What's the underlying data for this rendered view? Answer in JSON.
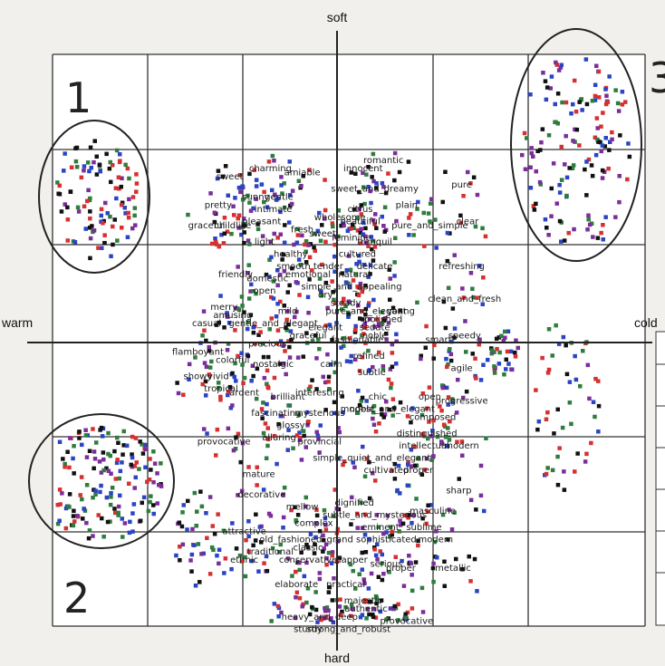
{
  "chart_data": {
    "type": "scatter",
    "axes": {
      "top": "soft",
      "bottom": "hard",
      "left": "warm",
      "right": "cold"
    },
    "grid": "on",
    "xlim": [
      -5,
      5
    ],
    "ylim": [
      -5,
      5
    ],
    "region_numbers": [
      "1",
      "2",
      "3"
    ],
    "point_colors": [
      "#d63030",
      "#2a44c4",
      "#2e7d3c",
      "#7b2d9a",
      "#111111"
    ],
    "words": [
      {
        "text": "sweet",
        "x": -3.7,
        "y": 4.0
      },
      {
        "text": "charming",
        "x": -2.3,
        "y": 4.2
      },
      {
        "text": "amiable",
        "x": -1.2,
        "y": 4.1
      },
      {
        "text": "innocent",
        "x": 0.9,
        "y": 4.2
      },
      {
        "text": "romantic",
        "x": 1.6,
        "y": 4.4
      },
      {
        "text": "sweet_and_dreamy",
        "x": 1.3,
        "y": 3.7
      },
      {
        "text": "sunny",
        "x": -2.8,
        "y": 3.5
      },
      {
        "text": "gentle",
        "x": -2.0,
        "y": 3.5
      },
      {
        "text": "pretty",
        "x": -4.1,
        "y": 3.3
      },
      {
        "text": "intimate",
        "x": -2.2,
        "y": 3.2
      },
      {
        "text": "citrus",
        "x": 0.8,
        "y": 3.2
      },
      {
        "text": "plain",
        "x": 2.4,
        "y": 3.3
      },
      {
        "text": "pure",
        "x": 4.3,
        "y": 3.8
      },
      {
        "text": "graceful",
        "x": -4.5,
        "y": 2.8
      },
      {
        "text": "childlike",
        "x": -3.6,
        "y": 2.8
      },
      {
        "text": "pleasant",
        "x": -2.6,
        "y": 2.9
      },
      {
        "text": "fresh",
        "x": -1.2,
        "y": 2.7
      },
      {
        "text": "wholesome",
        "x": 0.1,
        "y": 3.0
      },
      {
        "text": "beautiful",
        "x": 0.8,
        "y": 2.9
      },
      {
        "text": "pure_and_simple",
        "x": 3.2,
        "y": 2.8
      },
      {
        "text": "clear",
        "x": 4.5,
        "y": 2.9
      },
      {
        "text": "light",
        "x": -2.5,
        "y": 2.4
      },
      {
        "text": "sweet",
        "x": -0.5,
        "y": 2.6
      },
      {
        "text": "feminine",
        "x": 0.5,
        "y": 2.5
      },
      {
        "text": "tranquil",
        "x": 1.3,
        "y": 2.4
      },
      {
        "text": "cultured",
        "x": 0.7,
        "y": 2.1
      },
      {
        "text": "delicate",
        "x": 1.3,
        "y": 1.8
      },
      {
        "text": "healthy",
        "x": -1.6,
        "y": 2.1
      },
      {
        "text": "smooth",
        "x": -1.5,
        "y": 1.8
      },
      {
        "text": "tender",
        "x": -0.3,
        "y": 1.8
      },
      {
        "text": "friendly",
        "x": -3.5,
        "y": 1.6
      },
      {
        "text": "domestic",
        "x": -2.4,
        "y": 1.5
      },
      {
        "text": "emotional",
        "x": -1.0,
        "y": 1.6
      },
      {
        "text": "natural",
        "x": 0.6,
        "y": 1.6
      },
      {
        "text": "refreshing",
        "x": 4.3,
        "y": 1.8
      },
      {
        "text": "simple_and_appealing",
        "x": 0.5,
        "y": 1.3
      },
      {
        "text": "open",
        "x": -2.5,
        "y": 1.2
      },
      {
        "text": "dry",
        "x": -0.4,
        "y": 1.1
      },
      {
        "text": "steady",
        "x": 0.3,
        "y": 0.9
      },
      {
        "text": "clean_and_fresh",
        "x": 4.4,
        "y": 1.0
      },
      {
        "text": "merry",
        "x": -3.9,
        "y": 0.8
      },
      {
        "text": "amusing",
        "x": -3.6,
        "y": 0.6
      },
      {
        "text": "mild",
        "x": -1.7,
        "y": 0.7
      },
      {
        "text": "pure_and_elegant",
        "x": 1.0,
        "y": 0.7
      },
      {
        "text": "young",
        "x": 2.2,
        "y": 0.7
      },
      {
        "text": "casual",
        "x": -4.5,
        "y": 0.4
      },
      {
        "text": "gentle_and_elegant",
        "x": -2.2,
        "y": 0.4
      },
      {
        "text": "elegant",
        "x": -0.4,
        "y": 0.3
      },
      {
        "text": "polished",
        "x": 1.6,
        "y": 0.5
      },
      {
        "text": "sedate",
        "x": 1.3,
        "y": 0.3
      },
      {
        "text": "noble",
        "x": 1.3,
        "y": 0.1
      },
      {
        "text": "graceful",
        "x": -1.0,
        "y": 0.1
      },
      {
        "text": "speedy",
        "x": 4.4,
        "y": 0.1
      },
      {
        "text": "precious",
        "x": -2.4,
        "y": -0.1
      },
      {
        "text": "fashionable",
        "x": 0.7,
        "y": 0.0
      },
      {
        "text": "smart",
        "x": 3.5,
        "y": 0.0
      },
      {
        "text": "flamboyant",
        "x": -4.8,
        "y": -0.3
      },
      {
        "text": "colorful",
        "x": -3.6,
        "y": -0.5
      },
      {
        "text": "nostalgic",
        "x": -2.2,
        "y": -0.6
      },
      {
        "text": "calm",
        "x": -0.2,
        "y": -0.6
      },
      {
        "text": "refined",
        "x": 1.1,
        "y": -0.4
      },
      {
        "text": "subtle",
        "x": 1.2,
        "y": -0.8
      },
      {
        "text": "agile",
        "x": 4.3,
        "y": -0.7
      },
      {
        "text": "showy",
        "x": -4.8,
        "y": -0.9
      },
      {
        "text": "vivid",
        "x": -4.1,
        "y": -0.9
      },
      {
        "text": "tropical",
        "x": -4.0,
        "y": -1.2
      },
      {
        "text": "ardent",
        "x": -3.2,
        "y": -1.3
      },
      {
        "text": "brilliant",
        "x": -1.7,
        "y": -1.4
      },
      {
        "text": "interesting",
        "x": -0.6,
        "y": -1.3
      },
      {
        "text": "chic",
        "x": 1.4,
        "y": -1.4
      },
      {
        "text": "open",
        "x": 3.2,
        "y": -1.4
      },
      {
        "text": "progressive",
        "x": 4.3,
        "y": -1.5
      },
      {
        "text": "fascinating",
        "x": -2.1,
        "y": -1.8
      },
      {
        "text": "mysterious",
        "x": -0.6,
        "y": -1.8
      },
      {
        "text": "modest",
        "x": 0.7,
        "y": -1.7
      },
      {
        "text": "noble_and_elegant",
        "x": 1.9,
        "y": -1.7
      },
      {
        "text": "composed",
        "x": 3.3,
        "y": -1.9
      },
      {
        "text": "glossy",
        "x": -1.6,
        "y": -2.1
      },
      {
        "text": "alluring",
        "x": -2.0,
        "y": -2.4
      },
      {
        "text": "provincial",
        "x": -0.6,
        "y": -2.5
      },
      {
        "text": "distinguished",
        "x": 3.1,
        "y": -2.3
      },
      {
        "text": "intellectual",
        "x": 3.0,
        "y": -2.6
      },
      {
        "text": "modern",
        "x": 4.3,
        "y": -2.6
      },
      {
        "text": "provocative",
        "x": -3.9,
        "y": -2.5
      },
      {
        "text": "simple_quiet_and_elegant",
        "x": 1.2,
        "y": -2.9
      },
      {
        "text": "cultivated",
        "x": 1.7,
        "y": -3.2
      },
      {
        "text": "proper",
        "x": 2.8,
        "y": -3.2
      },
      {
        "text": "mature",
        "x": -2.7,
        "y": -3.3
      },
      {
        "text": "sharp",
        "x": 4.2,
        "y": -3.7
      },
      {
        "text": "decorative",
        "x": -2.6,
        "y": -3.8
      },
      {
        "text": "mellow",
        "x": -1.2,
        "y": -4.1
      },
      {
        "text": "dignified",
        "x": 0.6,
        "y": -4.0
      },
      {
        "text": "subtle_and_mysterious",
        "x": 1.3,
        "y": -4.3
      },
      {
        "text": "eminent",
        "x": 1.5,
        "y": -4.6
      },
      {
        "text": "masculine",
        "x": 3.3,
        "y": -4.2
      },
      {
        "text": "sublime",
        "x": 3.0,
        "y": -4.6
      },
      {
        "text": "attractive",
        "x": -3.2,
        "y": -4.7
      },
      {
        "text": "complex",
        "x": -0.8,
        "y": -4.5
      },
      {
        "text": "old_fashioned",
        "x": -1.6,
        "y": -4.9
      },
      {
        "text": "classic",
        "x": -1.0,
        "y": -5.1
      },
      {
        "text": "grand",
        "x": 0.1,
        "y": -4.9
      },
      {
        "text": "sophisticated",
        "x": 1.7,
        "y": -4.9
      },
      {
        "text": "modern",
        "x": 3.4,
        "y": -4.9
      },
      {
        "text": "traditional",
        "x": -2.3,
        "y": -5.2
      },
      {
        "text": "conservative",
        "x": -1.0,
        "y": -5.4
      },
      {
        "text": "dapper",
        "x": 0.5,
        "y": -5.4
      },
      {
        "text": "serious",
        "x": 1.7,
        "y": -5.5
      },
      {
        "text": "proper",
        "x": 2.2,
        "y": -5.6
      },
      {
        "text": "ethnic",
        "x": -3.2,
        "y": -5.4
      },
      {
        "text": "metallic",
        "x": 4.0,
        "y": -5.6
      },
      {
        "text": "elaborate",
        "x": -1.4,
        "y": -6.0
      },
      {
        "text": "practical",
        "x": 0.3,
        "y": -6.0
      },
      {
        "text": "majestic",
        "x": 0.9,
        "y": -6.4
      },
      {
        "text": "authentic",
        "x": 1.0,
        "y": -6.6
      },
      {
        "text": "heavy_and_deep",
        "x": -0.6,
        "y": -6.8
      },
      {
        "text": "sturdy",
        "x": -1.0,
        "y": -7.1
      },
      {
        "text": "strong_and_robust",
        "x": 0.4,
        "y": -7.1
      },
      {
        "text": "provocative",
        "x": 2.4,
        "y": -6.9
      }
    ]
  }
}
